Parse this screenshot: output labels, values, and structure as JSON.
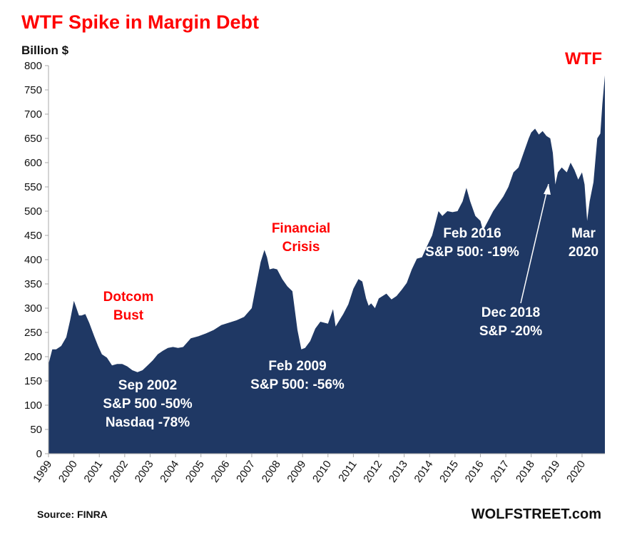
{
  "chart_data": {
    "type": "area",
    "title": "WTF Spike in Margin Debt",
    "ylabel": "Billion $",
    "xlabel": "",
    "ylim": [
      0,
      800
    ],
    "xlim": [
      1999.0,
      2020.9
    ],
    "yticks": [
      0,
      50,
      100,
      150,
      200,
      250,
      300,
      350,
      400,
      450,
      500,
      550,
      600,
      650,
      700,
      750,
      800
    ],
    "xticks": [
      "1999",
      "2000",
      "2001",
      "2002",
      "2003",
      "2004",
      "2005",
      "2006",
      "2007",
      "2008",
      "2009",
      "2010",
      "2011",
      "2012",
      "2013",
      "2014",
      "2015",
      "2016",
      "2017",
      "2018",
      "2019",
      "2020"
    ],
    "grid": false,
    "series": [
      {
        "name": "Margin Debt",
        "x": [
          1999.0,
          1999.15,
          1999.3,
          1999.5,
          1999.7,
          1999.85,
          2000.0,
          2000.1,
          2000.2,
          2000.3,
          2000.45,
          2000.6,
          2000.8,
          2000.95,
          2001.1,
          2001.3,
          2001.5,
          2001.7,
          2001.9,
          2002.1,
          2002.3,
          2002.5,
          2002.7,
          2002.9,
          2003.1,
          2003.3,
          2003.5,
          2003.7,
          2003.9,
          2004.1,
          2004.3,
          2004.6,
          2004.9,
          2005.2,
          2005.5,
          2005.8,
          2006.1,
          2006.4,
          2006.7,
          2007.0,
          2007.2,
          2007.35,
          2007.5,
          2007.6,
          2007.7,
          2007.85,
          2008.0,
          2008.2,
          2008.4,
          2008.6,
          2008.8,
          2008.95,
          2009.1,
          2009.3,
          2009.5,
          2009.7,
          2010.0,
          2010.2,
          2010.3,
          2010.45,
          2010.6,
          2010.8,
          2011.0,
          2011.2,
          2011.35,
          2011.5,
          2011.6,
          2011.7,
          2011.85,
          2012.0,
          2012.3,
          2012.5,
          2012.7,
          2012.9,
          2013.1,
          2013.3,
          2013.5,
          2013.7,
          2013.9,
          2014.1,
          2014.2,
          2014.35,
          2014.5,
          2014.7,
          2014.9,
          2015.1,
          2015.3,
          2015.45,
          2015.6,
          2015.8,
          2016.0,
          2016.1,
          2016.3,
          2016.5,
          2016.7,
          2016.9,
          2017.1,
          2017.3,
          2017.5,
          2017.7,
          2017.9,
          2018.0,
          2018.15,
          2018.3,
          2018.45,
          2018.6,
          2018.75,
          2018.85,
          2018.95,
          2019.05,
          2019.2,
          2019.4,
          2019.55,
          2019.7,
          2019.85,
          2020.0,
          2020.1,
          2020.2,
          2020.3,
          2020.45,
          2020.6,
          2020.72,
          2020.8,
          2020.9
        ],
        "values": [
          185,
          215,
          215,
          222,
          240,
          275,
          315,
          300,
          285,
          285,
          288,
          270,
          242,
          222,
          205,
          198,
          182,
          185,
          185,
          180,
          172,
          168,
          172,
          182,
          192,
          205,
          212,
          218,
          220,
          218,
          220,
          238,
          242,
          248,
          255,
          265,
          270,
          275,
          282,
          300,
          355,
          395,
          420,
          405,
          380,
          382,
          380,
          360,
          345,
          335,
          255,
          215,
          218,
          232,
          258,
          272,
          268,
          298,
          262,
          275,
          288,
          308,
          340,
          360,
          355,
          320,
          305,
          310,
          300,
          320,
          330,
          318,
          325,
          338,
          352,
          380,
          402,
          405,
          428,
          450,
          470,
          500,
          490,
          500,
          498,
          500,
          520,
          548,
          520,
          490,
          480,
          460,
          480,
          500,
          515,
          530,
          550,
          580,
          590,
          620,
          650,
          662,
          670,
          658,
          665,
          655,
          650,
          620,
          555,
          580,
          590,
          580,
          600,
          585,
          565,
          580,
          555,
          480,
          520,
          560,
          650,
          660,
          720,
          780
        ]
      }
    ],
    "annotations": [
      {
        "lines": [
          "Dotcom",
          "Bust"
        ],
        "color": "#ff0000"
      },
      {
        "lines": [
          "Financial",
          "Crisis"
        ],
        "color": "#ff0000"
      },
      {
        "lines": [
          "Sep 2002",
          "S&P 500 -50%",
          "Nasdaq -78%"
        ],
        "color": "#ffffff"
      },
      {
        "lines": [
          "Feb 2009",
          "S&P 500: -56%"
        ],
        "color": "#ffffff"
      },
      {
        "lines": [
          "Feb 2016",
          "S&P 500: -19%"
        ],
        "color": "#ffffff"
      },
      {
        "lines": [
          "Dec 2018",
          "S&P -20%"
        ],
        "color": "#ffffff"
      },
      {
        "lines": [
          "Mar",
          "2020"
        ],
        "color": "#ffffff"
      },
      {
        "lines": [
          "WTF"
        ],
        "color": "#ff0000"
      }
    ],
    "colors": {
      "title": "#ff0000",
      "area": "#1f3864",
      "axis": "#aaaaaa",
      "text": "#111111"
    }
  },
  "footer": {
    "source": "Source: FINRA",
    "brand": "WOLFSTREET.com"
  }
}
